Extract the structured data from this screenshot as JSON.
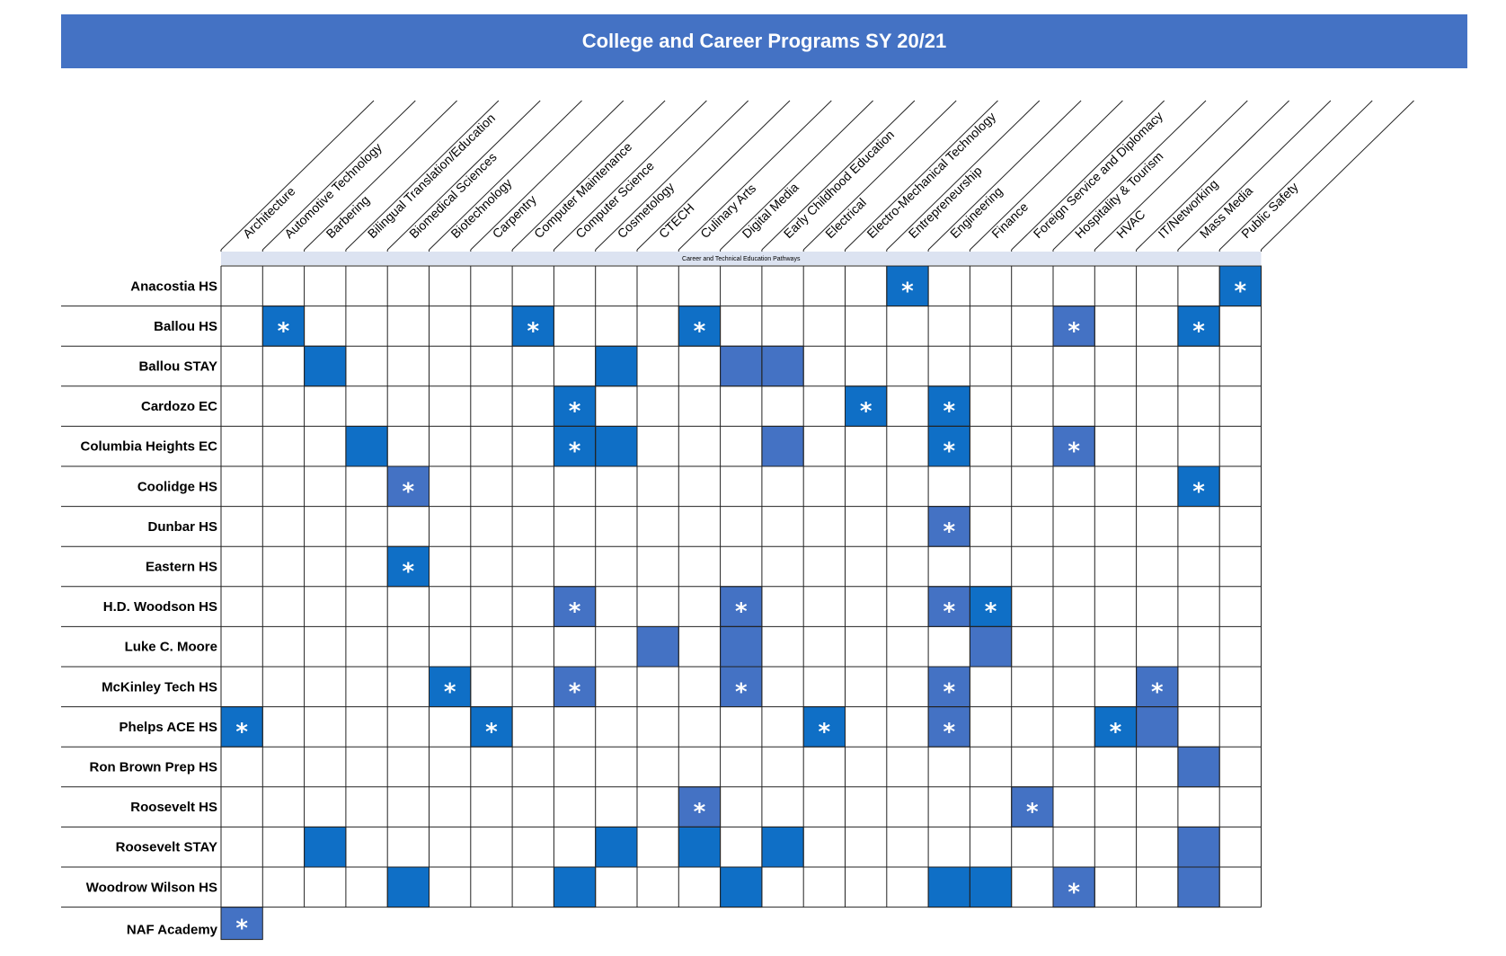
{
  "title": "College and Career Programs SY 20/21",
  "banner": "Career and Technical Education Pathways",
  "colors": {
    "title_bg": "#4472C4",
    "dark": "#0F6FC6",
    "light": "#4472C4",
    "banner_bg": "#DCE3F1",
    "grid_line": "#222222"
  },
  "legend_codes": {
    "D": "dark blue cell",
    "L": "lighter blue cell",
    "D*": "dark blue cell with asterisk",
    "L*": "lighter blue cell with asterisk"
  },
  "star_symbol": "*",
  "columns": [
    "Architecture",
    "Automotive Technology",
    "Barbering",
    "Bilingual Translation/Education",
    "Biomedical Sciences",
    "Biotechnology",
    "Carpentry",
    "Computer Maintenance",
    "Computer Science",
    "Cosmetology",
    "CTECH",
    "Culinary Arts",
    "Digital Media",
    "Early Childhood Education",
    "Electrical",
    "Electro-Mechanical Technology",
    "Entrepreneurship",
    "Engineering",
    "Finance",
    "Foreign Service and Diplomacy",
    "Hospitality & Tourism",
    "HVAC",
    "IT/Networking",
    "Mass Media",
    "Public Safety"
  ],
  "rows": [
    {
      "school": "Anacostia HS",
      "cells": {
        "17": "D*",
        "25": "D*"
      }
    },
    {
      "school": "Ballou HS",
      "cells": {
        "2": "D*",
        "8": "D*",
        "12": "D*",
        "21": "L*",
        "24": "D*"
      }
    },
    {
      "school": "Ballou STAY",
      "cells": {
        "3": "D",
        "10": "D",
        "13": "L",
        "14": "L"
      }
    },
    {
      "school": "Cardozo EC",
      "cells": {
        "9": "D*",
        "16": "D*",
        "18": "D*"
      }
    },
    {
      "school": "Columbia Heights EC",
      "cells": {
        "4": "D",
        "9": "D*",
        "10": "D",
        "14": "L",
        "18": "D*",
        "21": "L*"
      }
    },
    {
      "school": "Coolidge HS",
      "cells": {
        "5": "L*",
        "24": "D*"
      }
    },
    {
      "school": "Dunbar HS",
      "cells": {
        "18": "L*"
      }
    },
    {
      "school": "Eastern HS",
      "cells": {
        "5": "D*"
      }
    },
    {
      "school": "H.D. Woodson HS",
      "cells": {
        "9": "L*",
        "13": "L*",
        "18": "L*",
        "19": "D*"
      }
    },
    {
      "school": "Luke C. Moore",
      "cells": {
        "11": "L",
        "13": "L",
        "19": "L"
      }
    },
    {
      "school": "McKinley Tech HS",
      "cells": {
        "6": "D*",
        "9": "L*",
        "13": "L*",
        "18": "L*",
        "23": "L*"
      }
    },
    {
      "school": "Phelps ACE HS",
      "cells": {
        "1": "D*",
        "7": "D*",
        "15": "D*",
        "18": "L*",
        "22": "D*",
        "23": "L"
      }
    },
    {
      "school": "Ron Brown Prep HS",
      "cells": {
        "24": "L"
      }
    },
    {
      "school": "Roosevelt HS",
      "cells": {
        "12": "L*",
        "20": "L*"
      }
    },
    {
      "school": "Roosevelt STAY",
      "cells": {
        "3": "D",
        "10": "D",
        "12": "D",
        "14": "D",
        "24": "L"
      }
    },
    {
      "school": "Woodrow Wilson HS",
      "cells": {
        "5": "D",
        "9": "D",
        "13": "D",
        "18": "D",
        "19": "D",
        "21": "L*",
        "24": "L"
      }
    },
    {
      "school": "NAF Academy",
      "cells": {
        "1": "L*"
      }
    }
  ]
}
